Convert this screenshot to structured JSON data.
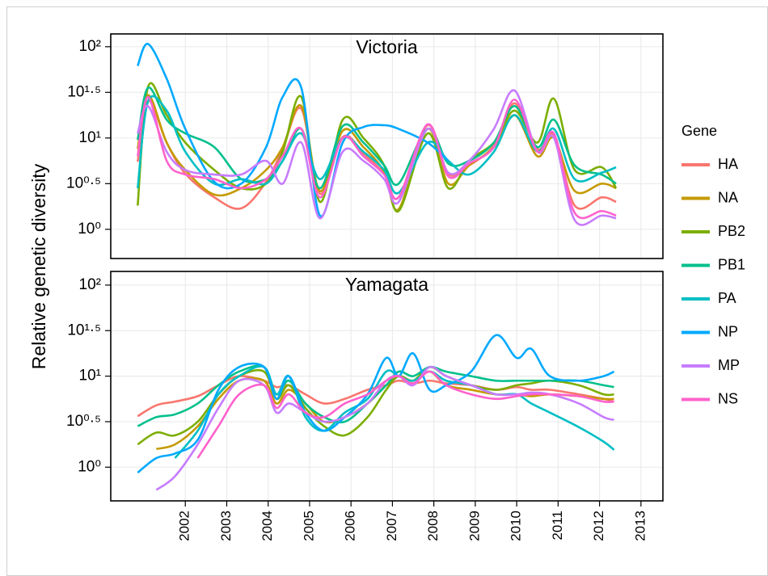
{
  "chart_data": [
    {
      "type": "line",
      "title": "Victoria",
      "ylabel": "Relative genetic diversity",
      "legend_title": "Gene",
      "legend": "right",
      "grid": true,
      "xlim": [
        2000.2,
        2013.53
      ],
      "xticks": [
        2002,
        2003,
        2004,
        2005,
        2006,
        2007,
        2008,
        2009,
        2010,
        2011,
        2012,
        2013
      ],
      "ylim": [
        -0.32,
        2.14
      ],
      "yticks": [
        {
          "value": 0,
          "label": "10⁰"
        },
        {
          "value": 0.5,
          "label": "10⁰·⁵"
        },
        {
          "value": 1,
          "label": "10¹"
        },
        {
          "value": 1.5,
          "label": "10¹·⁵"
        },
        {
          "value": 2,
          "label": "10²"
        }
      ],
      "x": [
        2000.85,
        2001.1,
        2001.55,
        2002.0,
        2002.7,
        2003.35,
        2003.95,
        2004.35,
        2004.8,
        2005.25,
        2005.8,
        2006.3,
        2006.8,
        2007.15,
        2007.85,
        2008.35,
        2008.85,
        2009.45,
        2009.95,
        2010.5,
        2010.9,
        2011.4,
        2012.05,
        2012.4
      ],
      "series": [
        {
          "name": "HA",
          "color": "#F8766D",
          "values": [
            0.74,
            1.41,
            0.95,
            0.61,
            0.35,
            0.23,
            0.52,
            0.88,
            1.32,
            0.39,
            1.01,
            0.83,
            0.61,
            0.35,
            1.14,
            0.61,
            0.7,
            0.92,
            1.38,
            0.88,
            1.03,
            0.26,
            0.35,
            0.3
          ]
        },
        {
          "name": "NA",
          "color": "#C49A00",
          "values": [
            0.88,
            1.47,
            0.95,
            0.65,
            0.38,
            0.45,
            0.65,
            0.9,
            1.35,
            0.42,
            1.08,
            0.9,
            0.63,
            0.22,
            1.1,
            0.5,
            0.7,
            0.9,
            1.25,
            0.8,
            1.0,
            0.42,
            0.5,
            0.45
          ]
        },
        {
          "name": "PB2",
          "color": "#7CAE00",
          "values": [
            0.26,
            1.56,
            1.25,
            0.95,
            0.65,
            0.45,
            0.5,
            0.85,
            1.45,
            0.3,
            1.2,
            1.0,
            0.7,
            0.2,
            1.05,
            0.45,
            0.75,
            0.95,
            1.3,
            0.95,
            1.43,
            0.65,
            0.68,
            0.45
          ]
        },
        {
          "name": "PB1",
          "color": "#00C08B",
          "values": [
            0.98,
            1.55,
            1.2,
            1.05,
            0.9,
            0.55,
            0.55,
            0.75,
            1.1,
            0.45,
            1.13,
            0.95,
            0.7,
            0.5,
            1.1,
            0.72,
            0.75,
            0.95,
            1.35,
            0.9,
            1.2,
            0.7,
            0.6,
            0.5
          ]
        },
        {
          "name": "PA",
          "color": "#00BFC4",
          "values": [
            0.45,
            1.4,
            1.3,
            0.85,
            0.5,
            0.55,
            0.5,
            0.75,
            1.05,
            0.55,
            1.0,
            0.85,
            0.65,
            0.4,
            0.95,
            0.75,
            0.6,
            0.85,
            1.25,
            0.85,
            1.1,
            0.55,
            0.62,
            0.68
          ]
        },
        {
          "name": "NP",
          "color": "#00A9FF",
          "values": [
            1.79,
            2.03,
            1.65,
            1.1,
            0.52,
            0.5,
            0.9,
            1.45,
            1.55,
            0.15,
            0.95,
            1.12,
            1.14,
            1.1,
            0.95,
            0.75,
            null,
            null,
            null,
            null,
            null,
            null,
            null,
            null
          ]
        },
        {
          "name": "MP",
          "color": "#C77CFF",
          "values": [
            1.05,
            1.35,
            0.85,
            0.65,
            0.6,
            0.6,
            0.75,
            0.5,
            0.95,
            0.12,
            0.85,
            0.75,
            0.55,
            0.3,
            1.1,
            0.62,
            0.75,
            1.1,
            1.52,
            0.85,
            1.0,
            0.1,
            0.15,
            0.12
          ]
        },
        {
          "name": "NS",
          "color": "#FF61CC",
          "values": [
            0.8,
            1.45,
            0.75,
            0.6,
            0.55,
            0.45,
            0.55,
            0.8,
            1.1,
            0.35,
            1.0,
            0.8,
            0.6,
            0.35,
            1.15,
            0.58,
            0.72,
            0.9,
            1.42,
            0.85,
            1.05,
            0.18,
            0.2,
            0.15
          ]
        }
      ]
    },
    {
      "type": "line",
      "title": "Yamagata",
      "grid": true,
      "xlim": [
        2000.2,
        2013.53
      ],
      "xticks": [
        2002,
        2003,
        2004,
        2005,
        2006,
        2007,
        2008,
        2009,
        2010,
        2011,
        2012,
        2013
      ],
      "ylim": [
        -0.37,
        2.15
      ],
      "yticks": [
        {
          "value": 0,
          "label": "10⁰"
        },
        {
          "value": 0.5,
          "label": "10⁰·⁵"
        },
        {
          "value": 1,
          "label": "10¹"
        },
        {
          "value": 1.5,
          "label": "10¹·⁵"
        },
        {
          "value": 2,
          "label": "10²"
        }
      ],
      "x": [
        2000.85,
        2001.3,
        2001.75,
        2002.3,
        2002.8,
        2003.3,
        2003.9,
        2004.2,
        2004.5,
        2004.9,
        2005.35,
        2005.85,
        2006.4,
        2006.85,
        2007.15,
        2007.5,
        2007.9,
        2008.3,
        2008.9,
        2009.5,
        2010.0,
        2010.35,
        2010.8,
        2011.5,
        2012.1,
        2012.35
      ],
      "series": [
        {
          "color": "#F8766D",
          "values": [
            0.56,
            0.68,
            0.72,
            0.78,
            0.9,
            1.0,
            0.95,
            0.88,
            0.9,
            0.8,
            0.7,
            0.75,
            0.85,
            0.9,
            0.95,
            0.92,
            0.95,
            0.92,
            0.9,
            0.85,
            0.88,
            0.85,
            0.85,
            0.8,
            0.75,
            0.72
          ]
        },
        {
          "color": "#C49A00",
          "values": [
            null,
            0.2,
            0.25,
            0.45,
            0.75,
            0.95,
            0.95,
            0.7,
            0.85,
            0.7,
            0.5,
            0.55,
            0.7,
            0.9,
            1.0,
            0.95,
            1.05,
            0.9,
            0.85,
            0.8,
            0.8,
            0.78,
            0.8,
            0.78,
            0.75,
            0.75
          ]
        },
        {
          "color": "#7CAE00",
          "values": [
            0.25,
            0.38,
            0.35,
            0.5,
            0.8,
            1.0,
            1.05,
            0.75,
            0.9,
            0.65,
            0.45,
            0.35,
            0.55,
            0.85,
            1.0,
            0.95,
            1.1,
            1.0,
            0.9,
            0.85,
            0.9,
            0.92,
            0.95,
            0.9,
            0.8,
            0.8
          ]
        },
        {
          "color": "#00C08B",
          "values": [
            0.45,
            0.55,
            0.58,
            0.7,
            0.9,
            1.05,
            1.1,
            0.8,
            0.95,
            0.7,
            0.55,
            0.5,
            0.7,
            0.9,
            1.05,
            1.0,
            1.1,
            1.05,
            1.0,
            0.95,
            0.95,
            0.95,
            0.95,
            0.95,
            0.9,
            0.88
          ]
        },
        {
          "color": "#00BFC4",
          "values": [
            null,
            null,
            0.1,
            0.4,
            0.8,
            1.0,
            1.1,
            0.8,
            1.0,
            0.55,
            0.4,
            0.6,
            0.75,
            1.05,
            1.0,
            0.95,
            1.05,
            0.95,
            0.9,
            0.8,
            0.8,
            0.7,
            0.6,
            0.44,
            0.28,
            0.19
          ]
        },
        {
          "color": "#00A9FF",
          "values": [
            -0.06,
            0.1,
            0.15,
            0.3,
            0.85,
            1.1,
            1.1,
            0.75,
            1.0,
            0.6,
            0.4,
            0.55,
            0.8,
            1.2,
            1.0,
            1.25,
            0.85,
            0.9,
            1.05,
            1.45,
            1.2,
            1.3,
            1.0,
            0.95,
            1.0,
            1.05
          ]
        },
        {
          "color": "#C77CFF",
          "values": [
            null,
            -0.25,
            -0.1,
            0.25,
            0.65,
            0.95,
            0.9,
            0.6,
            0.7,
            0.6,
            0.5,
            0.55,
            0.7,
            0.95,
            1.0,
            0.9,
            1.1,
            1.0,
            0.9,
            0.8,
            0.8,
            0.82,
            0.8,
            0.7,
            0.55,
            0.52
          ]
        },
        {
          "color": "#FF61CC",
          "values": [
            null,
            null,
            null,
            0.1,
            0.45,
            0.8,
            0.9,
            0.65,
            0.8,
            0.6,
            0.55,
            0.7,
            0.8,
            0.95,
            1.0,
            0.92,
            1.05,
            0.9,
            0.8,
            0.75,
            0.78,
            0.8,
            0.8,
            0.78,
            0.72,
            0.72
          ]
        }
      ]
    }
  ]
}
